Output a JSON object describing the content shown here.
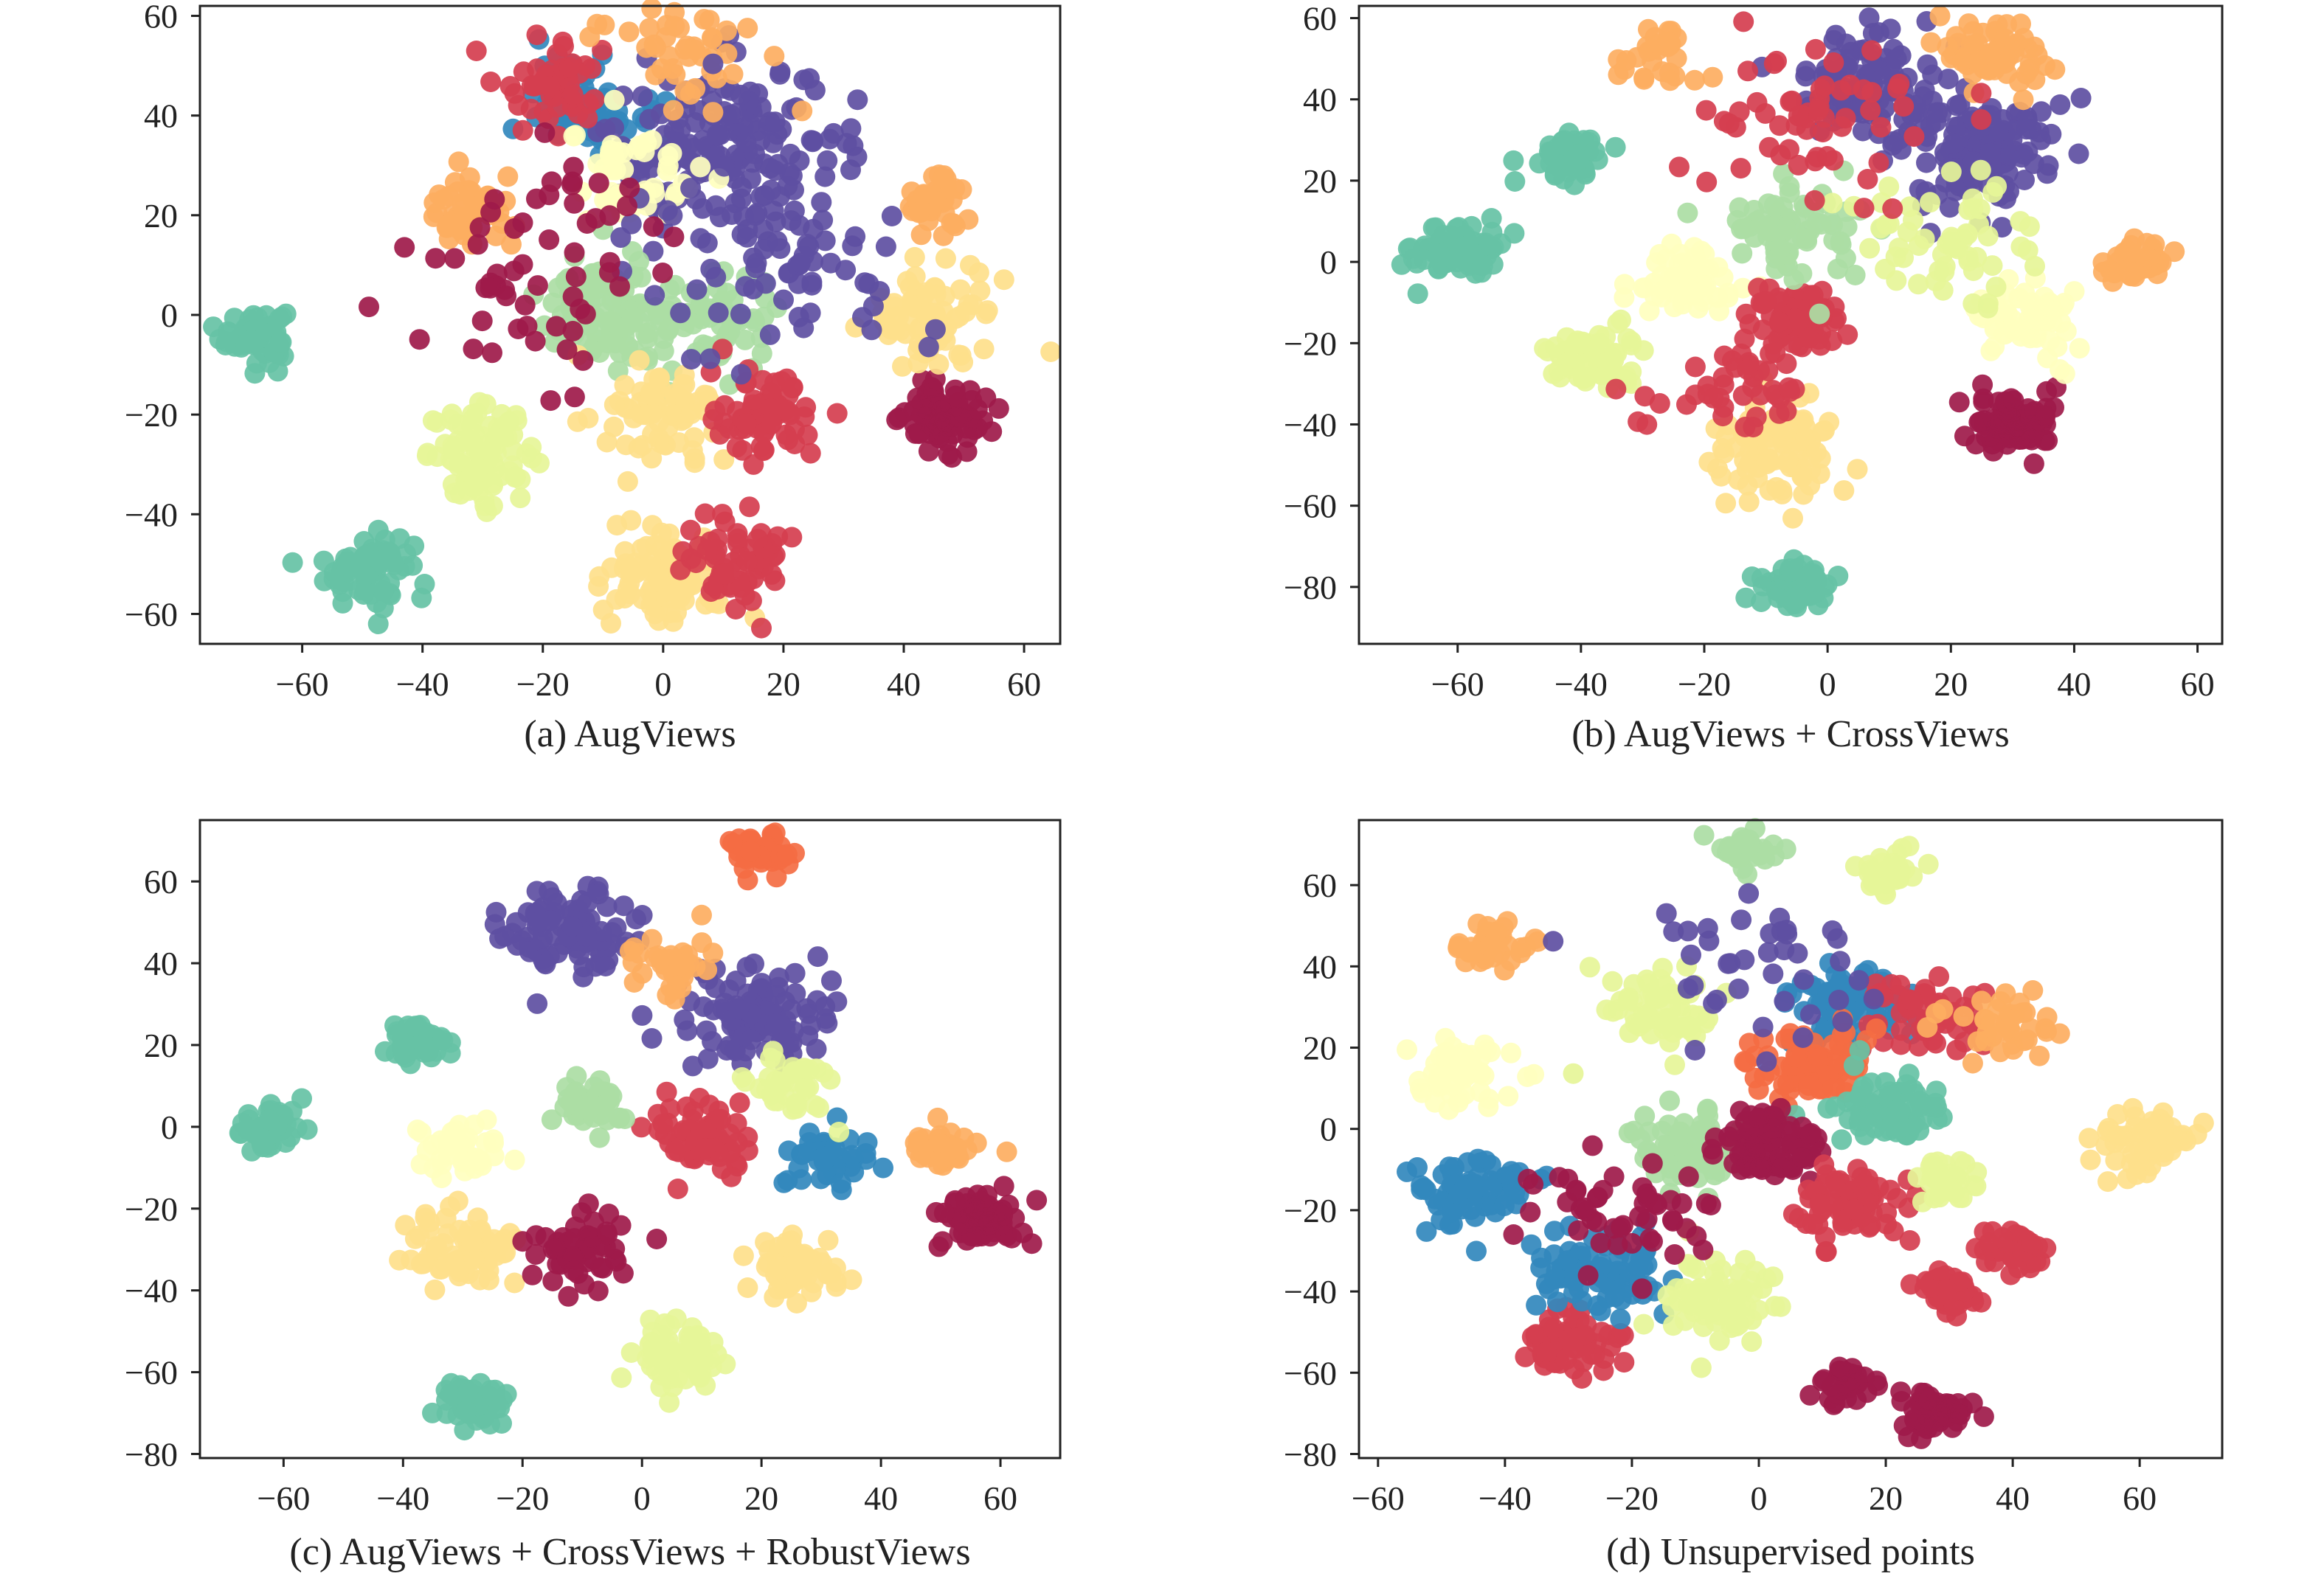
{
  "figure": {
    "panels": [
      {
        "id": "a",
        "caption": "(a) AugViews"
      },
      {
        "id": "b",
        "caption": "(b) AugViews + CrossViews"
      },
      {
        "id": "c",
        "caption": "(c) AugViews + CrossViews + RobustViews"
      },
      {
        "id": "d",
        "caption": "(d) Unsupervised points"
      }
    ]
  },
  "palette": [
    "#9e1a4a",
    "#d53e4f",
    "#f46d43",
    "#fdae61",
    "#fee08b",
    "#ffffbf",
    "#e6f598",
    "#abdda4",
    "#66c2a5",
    "#3288bd",
    "#5e4fa2"
  ],
  "chart_data": [
    {
      "type": "scatter",
      "title": "(a) AugViews",
      "xlim": [
        -77,
        66
      ],
      "ylim": [
        -66,
        62
      ],
      "xticks": [
        -60,
        -40,
        -20,
        0,
        20,
        40,
        60
      ],
      "yticks": [
        -60,
        -40,
        -20,
        0,
        20,
        40,
        60
      ],
      "grid": false,
      "clusters": [
        {
          "x": -68,
          "y": -4,
          "r": 3,
          "n": 70,
          "color": 8
        },
        {
          "x": -49,
          "y": -51,
          "r": 4,
          "n": 70,
          "color": 8
        },
        {
          "x": -30,
          "y": -28,
          "r": 5,
          "n": 90,
          "color": 6
        },
        {
          "x": -32,
          "y": 20,
          "r": 4,
          "n": 50,
          "color": 3
        },
        {
          "x": -12,
          "y": 43,
          "r": 5,
          "n": 70,
          "color": 9
        },
        {
          "x": 8,
          "y": 33,
          "r": 10,
          "n": 150,
          "color": 10
        },
        {
          "x": -18,
          "y": 47,
          "r": 5,
          "n": 50,
          "color": 1
        },
        {
          "x": 2,
          "y": 56,
          "r": 8,
          "n": 50,
          "color": 3
        },
        {
          "x": -5,
          "y": 28,
          "r": 6,
          "n": 50,
          "color": 5
        },
        {
          "x": -10,
          "y": 0,
          "r": 6,
          "n": 80,
          "color": 7
        },
        {
          "x": 7,
          "y": -3,
          "r": 7,
          "n": 70,
          "color": 7
        },
        {
          "x": 0,
          "y": -20,
          "r": 5,
          "n": 70,
          "color": 4
        },
        {
          "x": 17,
          "y": -20,
          "r": 5,
          "n": 70,
          "color": 1
        },
        {
          "x": 0,
          "y": -53,
          "r": 5,
          "n": 90,
          "color": 4
        },
        {
          "x": 12,
          "y": -48,
          "r": 6,
          "n": 60,
          "color": 1
        },
        {
          "x": 47,
          "y": -20,
          "r": 4,
          "n": 80,
          "color": 0
        },
        {
          "x": 45,
          "y": 22,
          "r": 3,
          "n": 40,
          "color": 3
        },
        {
          "x": 45,
          "y": 0,
          "r": 6,
          "n": 70,
          "color": 4
        },
        {
          "x": 20,
          "y": 15,
          "r": 12,
          "n": 90,
          "color": 10
        },
        {
          "x": -20,
          "y": 10,
          "r": 12,
          "n": 60,
          "color": 0
        }
      ]
    },
    {
      "type": "scatter",
      "title": "(b) AugViews + CrossViews",
      "xlim": [
        -76,
        64
      ],
      "ylim": [
        -94,
        63
      ],
      "xticks": [
        -60,
        -40,
        -20,
        0,
        20,
        40,
        60
      ],
      "yticks": [
        -80,
        -60,
        -40,
        -20,
        0,
        20,
        40,
        60
      ],
      "grid": false,
      "clusters": [
        {
          "x": -60,
          "y": 3,
          "r": 4,
          "n": 70,
          "color": 8
        },
        {
          "x": -42,
          "y": 26,
          "r": 3,
          "n": 60,
          "color": 8
        },
        {
          "x": -38,
          "y": -24,
          "r": 4,
          "n": 70,
          "color": 6
        },
        {
          "x": -23,
          "y": -5,
          "r": 5,
          "n": 70,
          "color": 5
        },
        {
          "x": -5,
          "y": -80,
          "r": 3,
          "n": 70,
          "color": 8
        },
        {
          "x": -8,
          "y": -46,
          "r": 6,
          "n": 90,
          "color": 4
        },
        {
          "x": -6,
          "y": -13,
          "r": 4,
          "n": 70,
          "color": 1
        },
        {
          "x": 24,
          "y": 27,
          "r": 7,
          "n": 150,
          "color": 10
        },
        {
          "x": 5,
          "y": 45,
          "r": 7,
          "n": 90,
          "color": 10
        },
        {
          "x": 27,
          "y": 52,
          "r": 5,
          "n": 60,
          "color": 3
        },
        {
          "x": -5,
          "y": 7,
          "r": 6,
          "n": 70,
          "color": 7
        },
        {
          "x": 30,
          "y": -40,
          "r": 4,
          "n": 80,
          "color": 0
        },
        {
          "x": 50,
          "y": 0,
          "r": 3,
          "n": 40,
          "color": 3
        },
        {
          "x": 33,
          "y": -15,
          "r": 6,
          "n": 60,
          "color": 5
        },
        {
          "x": -27,
          "y": 50,
          "r": 4,
          "n": 30,
          "color": 3
        },
        {
          "x": 20,
          "y": 5,
          "r": 10,
          "n": 60,
          "color": 6
        },
        {
          "x": 0,
          "y": 35,
          "r": 10,
          "n": 60,
          "color": 1
        },
        {
          "x": -15,
          "y": -30,
          "r": 8,
          "n": 50,
          "color": 1
        }
      ]
    },
    {
      "type": "scatter",
      "title": "(c) AugViews + CrossViews + RobustViews",
      "xlim": [
        -74,
        70
      ],
      "ylim": [
        -81,
        75
      ],
      "xticks": [
        -60,
        -40,
        -20,
        0,
        20,
        40,
        60
      ],
      "yticks": [
        -80,
        -60,
        -40,
        -20,
        0,
        20,
        40,
        60
      ],
      "grid": false,
      "clusters": [
        {
          "x": -62,
          "y": 0,
          "r": 3,
          "n": 60,
          "color": 8
        },
        {
          "x": -38,
          "y": 20,
          "r": 3,
          "n": 50,
          "color": 8
        },
        {
          "x": -30,
          "y": -30,
          "r": 5,
          "n": 70,
          "color": 4
        },
        {
          "x": -28,
          "y": -68,
          "r": 3,
          "n": 60,
          "color": 8
        },
        {
          "x": -12,
          "y": 48,
          "r": 6,
          "n": 100,
          "color": 10
        },
        {
          "x": 20,
          "y": 67,
          "r": 3,
          "n": 50,
          "color": 2
        },
        {
          "x": 18,
          "y": 27,
          "r": 7,
          "n": 110,
          "color": 10
        },
        {
          "x": 10,
          "y": -3,
          "r": 5,
          "n": 70,
          "color": 1
        },
        {
          "x": 5,
          "y": -55,
          "r": 4,
          "n": 70,
          "color": 6
        },
        {
          "x": 25,
          "y": -35,
          "r": 4,
          "n": 60,
          "color": 4
        },
        {
          "x": 58,
          "y": -23,
          "r": 4,
          "n": 70,
          "color": 0
        },
        {
          "x": 50,
          "y": -5,
          "r": 3,
          "n": 40,
          "color": 3
        },
        {
          "x": -8,
          "y": 5,
          "r": 4,
          "n": 40,
          "color": 7
        },
        {
          "x": -30,
          "y": -5,
          "r": 4,
          "n": 40,
          "color": 5
        },
        {
          "x": 5,
          "y": 40,
          "r": 4,
          "n": 40,
          "color": 3
        },
        {
          "x": -10,
          "y": -30,
          "r": 5,
          "n": 50,
          "color": 0
        },
        {
          "x": 30,
          "y": -7,
          "r": 4,
          "n": 40,
          "color": 9
        },
        {
          "x": 25,
          "y": 10,
          "r": 4,
          "n": 40,
          "color": 6
        }
      ]
    },
    {
      "type": "scatter",
      "title": "(d) Unsupervised points",
      "xlim": [
        -63,
        73
      ],
      "ylim": [
        -81,
        76
      ],
      "xticks": [
        -60,
        -40,
        -20,
        0,
        20,
        40,
        60
      ],
      "yticks": [
        -80,
        -60,
        -40,
        -20,
        0,
        20,
        40,
        60
      ],
      "grid": false,
      "clusters": [
        {
          "x": -48,
          "y": 13,
          "r": 5,
          "n": 60,
          "color": 5
        },
        {
          "x": -45,
          "y": -15,
          "r": 5,
          "n": 70,
          "color": 9
        },
        {
          "x": -42,
          "y": 45,
          "r": 3,
          "n": 40,
          "color": 3
        },
        {
          "x": -30,
          "y": -53,
          "r": 4,
          "n": 70,
          "color": 1
        },
        {
          "x": -25,
          "y": -35,
          "r": 6,
          "n": 80,
          "color": 9
        },
        {
          "x": -2,
          "y": 68,
          "r": 3,
          "n": 40,
          "color": 7
        },
        {
          "x": 15,
          "y": 30,
          "r": 5,
          "n": 80,
          "color": 9
        },
        {
          "x": 25,
          "y": 28,
          "r": 5,
          "n": 60,
          "color": 1
        },
        {
          "x": 8,
          "y": 15,
          "r": 5,
          "n": 80,
          "color": 2
        },
        {
          "x": 20,
          "y": 5,
          "r": 5,
          "n": 80,
          "color": 8
        },
        {
          "x": -12,
          "y": -5,
          "r": 5,
          "n": 80,
          "color": 7
        },
        {
          "x": 2,
          "y": -5,
          "r": 5,
          "n": 80,
          "color": 0
        },
        {
          "x": 14,
          "y": -18,
          "r": 5,
          "n": 80,
          "color": 1
        },
        {
          "x": -8,
          "y": -42,
          "r": 5,
          "n": 80,
          "color": 6
        },
        {
          "x": 30,
          "y": -40,
          "r": 3,
          "n": 40,
          "color": 1
        },
        {
          "x": 40,
          "y": -30,
          "r": 3,
          "n": 40,
          "color": 1
        },
        {
          "x": 28,
          "y": -70,
          "r": 3,
          "n": 50,
          "color": 0
        },
        {
          "x": 13,
          "y": -63,
          "r": 3,
          "n": 30,
          "color": 0
        },
        {
          "x": 62,
          "y": -3,
          "r": 5,
          "n": 60,
          "color": 4
        },
        {
          "x": 30,
          "y": -13,
          "r": 3,
          "n": 30,
          "color": 6
        },
        {
          "x": 20,
          "y": 63,
          "r": 3,
          "n": 30,
          "color": 6
        },
        {
          "x": 38,
          "y": 25,
          "r": 5,
          "n": 40,
          "color": 3
        },
        {
          "x": -15,
          "y": 30,
          "r": 6,
          "n": 60,
          "color": 6
        },
        {
          "x": -20,
          "y": -20,
          "r": 8,
          "n": 50,
          "color": 0
        },
        {
          "x": 0,
          "y": 40,
          "r": 10,
          "n": 40,
          "color": 10
        }
      ]
    }
  ]
}
